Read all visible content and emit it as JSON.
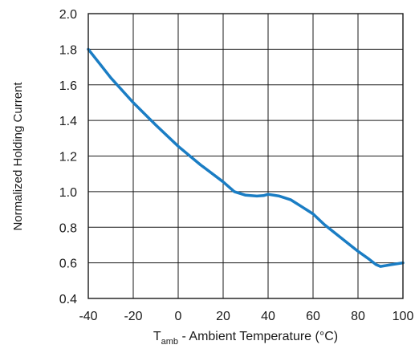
{
  "chart_data": {
    "type": "line",
    "xlabel": {
      "main": "T",
      "subscript": "amb",
      "rest": " - Ambient Temperature (°C)"
    },
    "ylabel": "Normalized Holding Current",
    "xlim": [
      -40,
      100
    ],
    "ylim": [
      0.4,
      2.0
    ],
    "xticks": [
      -40,
      -20,
      0,
      20,
      40,
      60,
      80,
      100
    ],
    "yticks": [
      0.4,
      0.6,
      0.8,
      1.0,
      1.2,
      1.4,
      1.6,
      1.8,
      2.0
    ],
    "xtick_labels": [
      "-40",
      "-20",
      "0",
      "20",
      "40",
      "60",
      "80",
      "100"
    ],
    "ytick_labels": [
      "0.4",
      "0.6",
      "0.8",
      "1.0",
      "1.2",
      "1.4",
      "1.6",
      "1.8",
      "2.0"
    ],
    "grid": true,
    "series": [
      {
        "color": "#1a7dc4",
        "x": [
          -40,
          -30,
          -20,
          -10,
          0,
          10,
          20,
          25,
          30,
          35,
          38,
          40,
          45,
          50,
          55,
          60,
          65,
          70,
          75,
          80,
          85,
          88,
          90,
          95,
          100
        ],
        "y": [
          1.8,
          1.64,
          1.5,
          1.375,
          1.255,
          1.15,
          1.055,
          1.0,
          0.98,
          0.975,
          0.978,
          0.985,
          0.975,
          0.955,
          0.915,
          0.875,
          0.815,
          0.765,
          0.715,
          0.665,
          0.62,
          0.59,
          0.58,
          0.59,
          0.6
        ]
      }
    ]
  }
}
